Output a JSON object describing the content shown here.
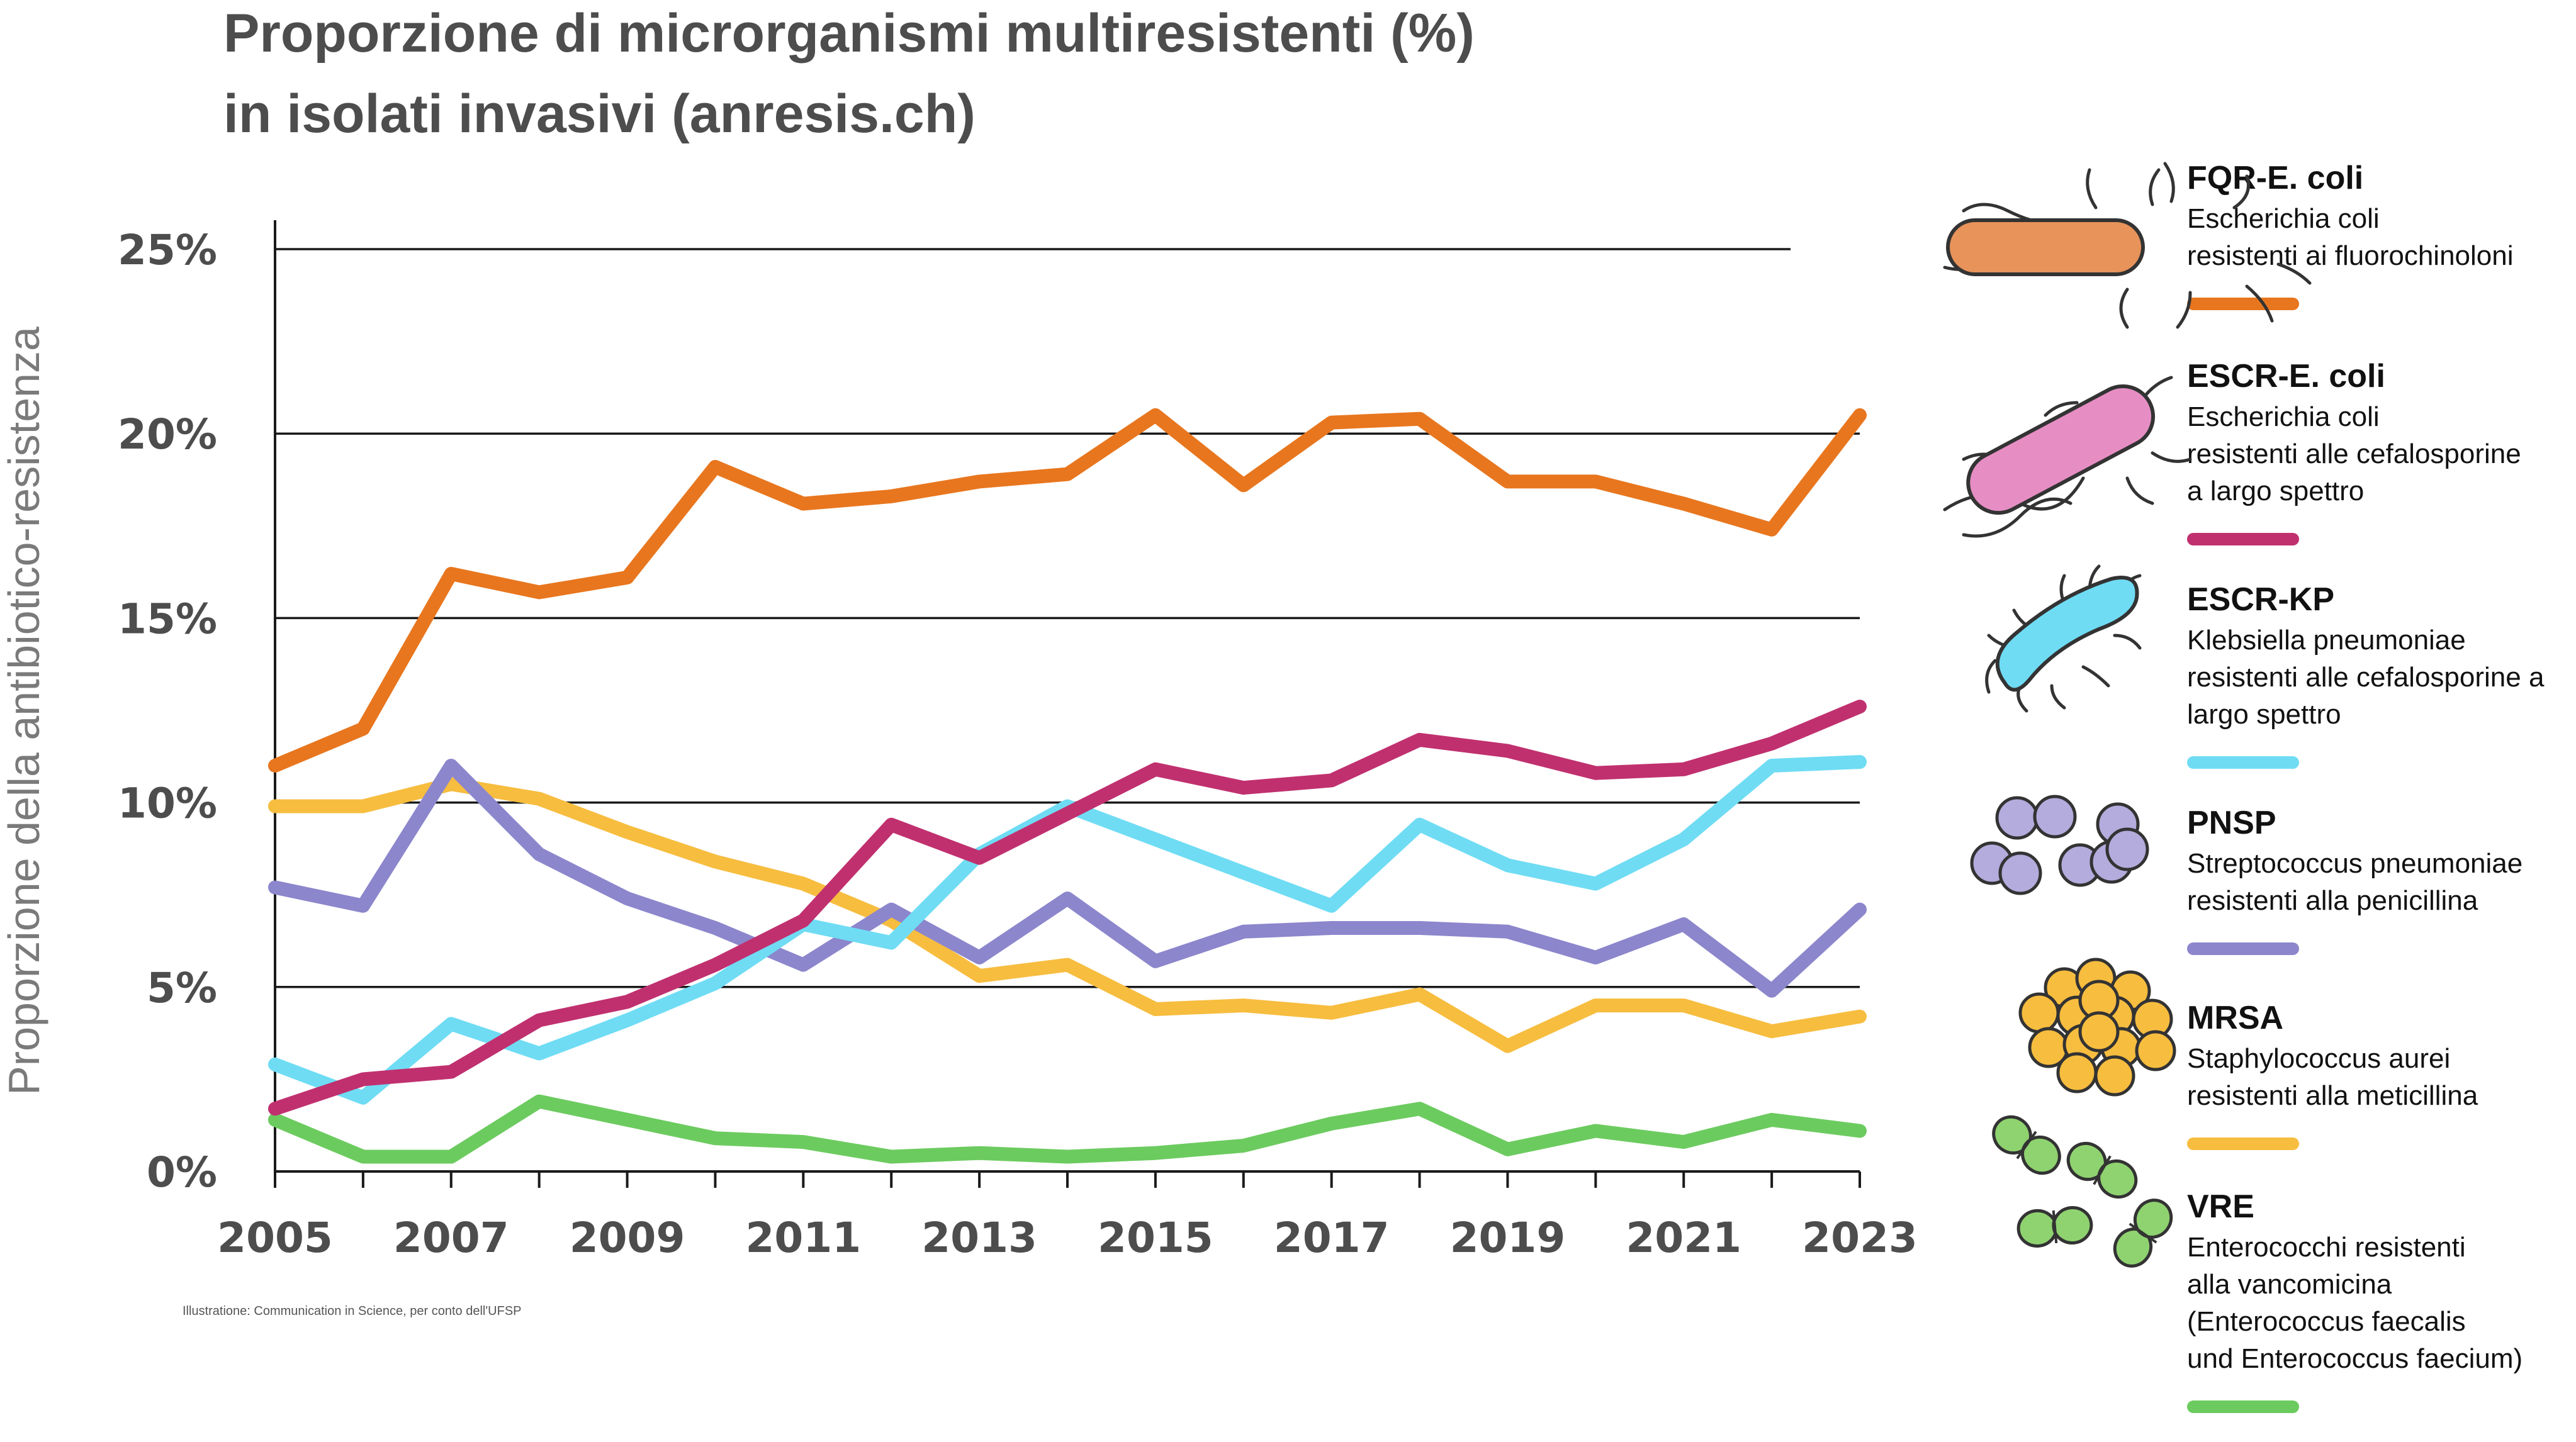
{
  "chart_data": {
    "type": "line",
    "title_lines": [
      "Proporzione di microrganismi multiresistenti (%)",
      "in isolati invasivi (anresis.ch)"
    ],
    "ylabel": "Proporzione della antibiotico-resistenza",
    "xlabel": "",
    "ylim": [
      0,
      25
    ],
    "y_ticks": [
      0,
      5,
      10,
      15,
      20,
      25
    ],
    "y_tick_labels": [
      "0%",
      "5%",
      "10%",
      "15%",
      "20%",
      "25%"
    ],
    "x": [
      2005,
      2006,
      2007,
      2008,
      2009,
      2010,
      2011,
      2012,
      2013,
      2014,
      2015,
      2016,
      2017,
      2018,
      2019,
      2020,
      2021,
      2022,
      2023
    ],
    "x_tick_labels": [
      "2005",
      "2007",
      "2009",
      "2011",
      "2013",
      "2015",
      "2017",
      "2019",
      "2021",
      "2023"
    ],
    "grid": "horizontal",
    "legend_position": "right",
    "series": [
      {
        "name": "FQR-E. coli",
        "description": [
          "Escherichia coli",
          "resistenti ai fluorochinoloni"
        ],
        "color": "#e8761e",
        "icon": "rod-bacterium-orange-icon",
        "values": [
          11.0,
          12.0,
          16.2,
          15.7,
          16.1,
          19.1,
          18.1,
          18.3,
          18.7,
          18.9,
          20.5,
          18.6,
          20.3,
          20.4,
          18.7,
          18.7,
          18.1,
          17.4,
          20.5
        ]
      },
      {
        "name": "ESCR-E. coli",
        "description": [
          "Escherichia coli",
          "resistenti alle cefalosporine",
          "a largo spettro"
        ],
        "color": "#c0306f",
        "icon": "rod-bacterium-pink-icon",
        "values": [
          1.7,
          2.5,
          2.7,
          4.1,
          4.6,
          5.6,
          6.8,
          9.4,
          8.5,
          9.7,
          10.9,
          10.4,
          10.6,
          11.7,
          11.4,
          10.8,
          10.9,
          11.6,
          12.6
        ]
      },
      {
        "name": "ESCR-KP",
        "description": [
          "Klebsiella pneumoniae",
          "resistenti alle cefalosporine a",
          "largo spettro"
        ],
        "color": "#6fdcf4",
        "icon": "curved-bacterium-blue-icon",
        "values": [
          2.9,
          2.0,
          4.0,
          3.2,
          4.1,
          5.1,
          6.7,
          6.2,
          8.6,
          9.9,
          9.0,
          8.1,
          7.2,
          9.4,
          8.3,
          7.8,
          9.0,
          11.0,
          11.1
        ]
      },
      {
        "name": "PNSP",
        "description": [
          "Streptococcus pneumoniae",
          "resistenti alla penicillina"
        ],
        "color": "#8c86cc",
        "icon": "diplococcus-purple-icon",
        "values": [
          7.7,
          7.2,
          11.0,
          8.6,
          7.4,
          6.6,
          5.6,
          7.1,
          5.8,
          7.4,
          5.7,
          6.5,
          6.6,
          6.6,
          6.5,
          5.8,
          6.7,
          4.9,
          7.1
        ]
      },
      {
        "name": "MRSA",
        "description": [
          "Staphylococcus aurei",
          "resistenti alla meticillina"
        ],
        "color": "#f7bd3f",
        "icon": "staphylococcus-yellow-icon",
        "values": [
          9.9,
          9.9,
          10.5,
          10.1,
          9.2,
          8.4,
          7.8,
          6.8,
          5.3,
          5.6,
          4.4,
          4.5,
          4.3,
          4.8,
          3.4,
          4.5,
          4.5,
          3.8,
          4.2
        ]
      },
      {
        "name": "VRE",
        "description": [
          "Enterococchi resistenti",
          "alla vancomicina",
          "(Enterococcus faecalis",
          "und Enterococcus faecium)"
        ],
        "color": "#6ccb5f",
        "icon": "enterococcus-green-icon",
        "values": [
          1.4,
          0.4,
          0.4,
          1.9,
          1.4,
          0.9,
          0.8,
          0.4,
          0.5,
          0.4,
          0.5,
          0.7,
          1.3,
          1.7,
          0.6,
          1.1,
          0.8,
          1.4,
          1.1
        ]
      }
    ],
    "credit": "Illustratione: Communication in Science, per conto dell'UFSP"
  }
}
